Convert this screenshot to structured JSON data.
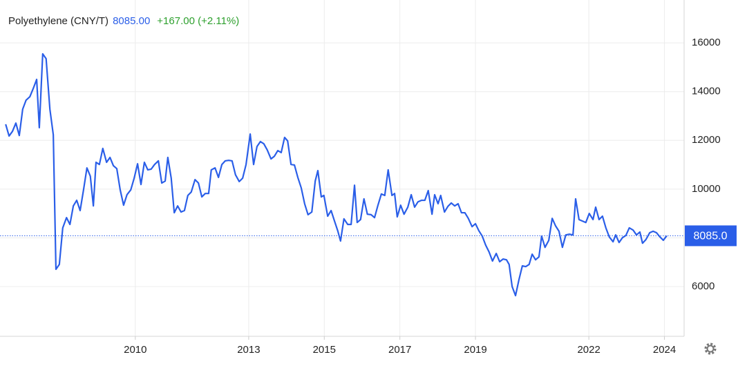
{
  "header": {
    "title": "Polyethylene (CNY/T)",
    "price": "8085.00",
    "change": "+167.00 (+2.11%)"
  },
  "chart_data": {
    "type": "line",
    "x": [
      2006.57,
      2006.66,
      2006.75,
      2006.84,
      2006.93,
      2007.02,
      2007.11,
      2007.21,
      2007.3,
      2007.39,
      2007.46,
      2007.55,
      2007.64,
      2007.74,
      2007.83,
      2007.9,
      2007.99,
      2008.08,
      2008.18,
      2008.27,
      2008.36,
      2008.45,
      2008.54,
      2008.63,
      2008.72,
      2008.81,
      2008.89,
      2008.96,
      2009.05,
      2009.14,
      2009.24,
      2009.33,
      2009.42,
      2009.51,
      2009.6,
      2009.69,
      2009.78,
      2009.88,
      2009.97,
      2010.06,
      2010.15,
      2010.24,
      2010.33,
      2010.42,
      2010.51,
      2010.61,
      2010.7,
      2010.79,
      2010.86,
      2010.95,
      2011.03,
      2011.12,
      2011.21,
      2011.3,
      2011.39,
      2011.48,
      2011.58,
      2011.67,
      2011.76,
      2011.85,
      2011.94,
      2012.01,
      2012.11,
      2012.2,
      2012.29,
      2012.38,
      2012.47,
      2012.56,
      2012.65,
      2012.75,
      2012.84,
      2012.93,
      2013.04,
      2013.13,
      2013.22,
      2013.31,
      2013.4,
      2013.49,
      2013.59,
      2013.68,
      2013.77,
      2013.86,
      2013.95,
      2014.03,
      2014.12,
      2014.21,
      2014.3,
      2014.39,
      2014.48,
      2014.57,
      2014.67,
      2014.76,
      2014.83,
      2014.92,
      2014.99,
      2015.09,
      2015.18,
      2015.27,
      2015.36,
      2015.43,
      2015.52,
      2015.62,
      2015.71,
      2015.8,
      2015.87,
      2015.96,
      2016.05,
      2016.14,
      2016.24,
      2016.33,
      2016.42,
      2016.51,
      2016.6,
      2016.69,
      2016.79,
      2016.86,
      2016.93,
      2017.02,
      2017.11,
      2017.21,
      2017.3,
      2017.39,
      2017.48,
      2017.57,
      2017.66,
      2017.75,
      2017.85,
      2017.92,
      2018.01,
      2018.08,
      2018.18,
      2018.27,
      2018.36,
      2018.45,
      2018.54,
      2018.63,
      2018.72,
      2018.81,
      2018.91,
      2019.0,
      2019.09,
      2019.18,
      2019.27,
      2019.36,
      2019.45,
      2019.55,
      2019.64,
      2019.73,
      2019.82,
      2019.89,
      2019.97,
      2020.06,
      2020.15,
      2020.24,
      2020.33,
      2020.42,
      2020.5,
      2020.59,
      2020.68,
      2020.75,
      2020.84,
      2020.94,
      2021.03,
      2021.12,
      2021.21,
      2021.3,
      2021.39,
      2021.48,
      2021.58,
      2021.65,
      2021.74,
      2021.83,
      2021.92,
      2022.01,
      2022.11,
      2022.18,
      2022.27,
      2022.36,
      2022.45,
      2022.54,
      2022.64,
      2022.71,
      2022.8,
      2022.89,
      2022.98,
      2023.07,
      2023.17,
      2023.26,
      2023.35,
      2023.42,
      2023.51,
      2023.61,
      2023.7,
      2023.79,
      2023.88,
      2023.97,
      2024.06
    ],
    "series": [
      {
        "name": "Polyethylene",
        "color": "#2a5ee8",
        "values": [
          12660,
          12180,
          12370,
          12710,
          12200,
          13280,
          13650,
          13790,
          14130,
          14500,
          12520,
          15550,
          15350,
          13280,
          12230,
          6710,
          6910,
          8410,
          8830,
          8550,
          9310,
          9540,
          9120,
          9970,
          10870,
          10530,
          9310,
          11100,
          11010,
          11670,
          11100,
          11300,
          10960,
          10840,
          9970,
          9340,
          9770,
          9970,
          10450,
          11040,
          10190,
          11100,
          10790,
          10820,
          11010,
          11160,
          10250,
          10330,
          11300,
          10450,
          9030,
          9310,
          9060,
          9120,
          9740,
          9880,
          10390,
          10250,
          9680,
          9820,
          9820,
          10790,
          10870,
          10480,
          11010,
          11160,
          11180,
          11160,
          10590,
          10310,
          10450,
          11010,
          12260,
          11010,
          11750,
          11950,
          11860,
          11610,
          11240,
          11350,
          11580,
          11500,
          12120,
          11980,
          11010,
          10990,
          10480,
          10050,
          9400,
          8950,
          9060,
          10330,
          10760,
          9680,
          9740,
          8890,
          9120,
          8690,
          8270,
          7870,
          8780,
          8550,
          8550,
          10160,
          8630,
          8750,
          9600,
          8970,
          8950,
          8830,
          9340,
          9800,
          9740,
          10790,
          9740,
          9820,
          8860,
          9340,
          8970,
          9260,
          9770,
          9260,
          9480,
          9540,
          9540,
          9940,
          8970,
          9770,
          9400,
          9740,
          9060,
          9290,
          9430,
          9310,
          9400,
          9030,
          9030,
          8800,
          8460,
          8580,
          8290,
          8070,
          7700,
          7420,
          7050,
          7360,
          7020,
          7130,
          7100,
          6910,
          6000,
          5630,
          6280,
          6850,
          6820,
          6910,
          7330,
          7100,
          7220,
          8070,
          7610,
          7900,
          8800,
          8490,
          8270,
          7610,
          8120,
          8150,
          8120,
          9600,
          8750,
          8690,
          8630,
          9000,
          8750,
          9260,
          8750,
          8890,
          8410,
          8040,
          7840,
          8120,
          7810,
          8010,
          8100,
          8410,
          8320,
          8120,
          8240,
          7780,
          7930,
          8210,
          8270,
          8210,
          8040,
          7900,
          8085
        ]
      }
    ],
    "xlim": [
      2006.42,
      2024.52
    ],
    "xticks": [
      2010,
      2013,
      2015,
      2017,
      2019,
      2022,
      2024
    ],
    "ylim": [
      3960,
      17760
    ],
    "yticks": [
      6000,
      8000,
      10000,
      12000,
      14000,
      16000
    ],
    "annotations": [
      {
        "value": 8085,
        "label": "8085.0"
      }
    ],
    "grid": true
  }
}
